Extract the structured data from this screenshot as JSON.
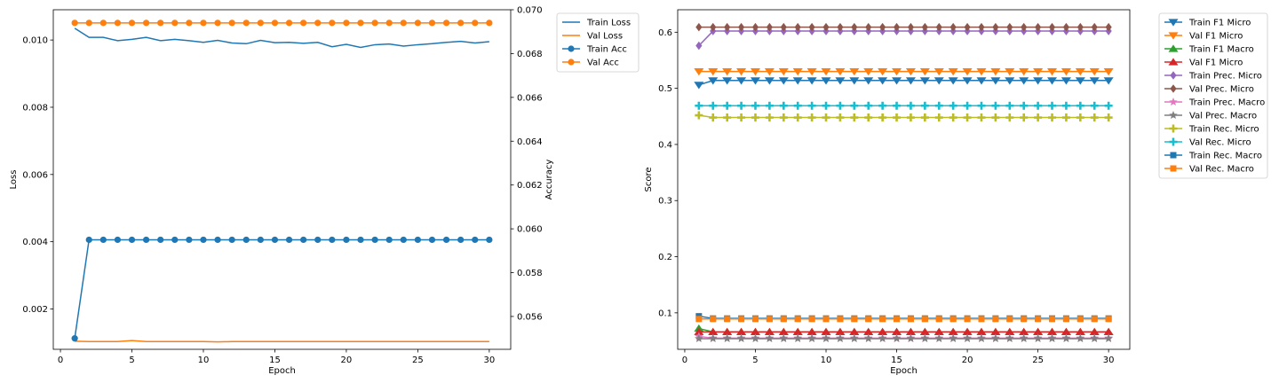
{
  "chart_data": [
    {
      "type": "line",
      "xlabel": "Epoch",
      "ylabel": "Loss",
      "y2label": "Accuracy",
      "xlim": [
        -0.5,
        31.5
      ],
      "ylim": [
        0.0008,
        0.0109
      ],
      "y2lim": [
        0.0545,
        0.07
      ],
      "xticks": [
        0,
        5,
        10,
        15,
        20,
        25,
        30
      ],
      "yticks": [
        0.002,
        0.004,
        0.006,
        0.008,
        0.01
      ],
      "ytick_labels": [
        "0.002",
        "0.004",
        "0.006",
        "0.008",
        "0.010"
      ],
      "y2ticks": [
        0.056,
        0.058,
        0.06,
        0.062,
        0.064,
        0.066,
        0.068,
        0.07
      ],
      "y2tick_labels": [
        "0.056",
        "0.058",
        "0.060",
        "0.062",
        "0.064",
        "0.066",
        "0.068",
        "0.070"
      ],
      "legend_position": "outside-right-top",
      "x": [
        1,
        2,
        3,
        4,
        5,
        6,
        7,
        8,
        9,
        10,
        11,
        12,
        13,
        14,
        15,
        16,
        17,
        18,
        19,
        20,
        21,
        22,
        23,
        24,
        25,
        26,
        27,
        28,
        29,
        30
      ],
      "series": [
        {
          "name": "Train Loss",
          "axis": "left",
          "color": "#1f77b4",
          "marker": "none",
          "values": [
            0.01035,
            0.01008,
            0.01008,
            0.00998,
            0.01002,
            0.01008,
            0.00998,
            0.01002,
            0.00998,
            0.00993,
            0.00999,
            0.00991,
            0.00989,
            0.00999,
            0.00992,
            0.00993,
            0.0099,
            0.00993,
            0.0098,
            0.00987,
            0.00978,
            0.00986,
            0.00988,
            0.00982,
            0.00986,
            0.00989,
            0.00993,
            0.00996,
            0.00991,
            0.00995
          ]
        },
        {
          "name": "Val Loss",
          "axis": "left",
          "color": "#ff7f0e",
          "marker": "none",
          "values": [
            0.00104,
            0.00103,
            0.00103,
            0.00103,
            0.00106,
            0.00103,
            0.00103,
            0.00103,
            0.00103,
            0.00103,
            0.00102,
            0.00103,
            0.00103,
            0.00103,
            0.00103,
            0.00103,
            0.00103,
            0.00103,
            0.00103,
            0.00103,
            0.00103,
            0.00103,
            0.00103,
            0.00103,
            0.00103,
            0.00103,
            0.00103,
            0.00103,
            0.00103,
            0.00103
          ]
        },
        {
          "name": "Train Acc",
          "axis": "right",
          "color": "#1f77b4",
          "marker": "circle",
          "values": [
            0.055,
            0.0595,
            0.0595,
            0.0595,
            0.0595,
            0.0595,
            0.0595,
            0.0595,
            0.0595,
            0.0595,
            0.0595,
            0.0595,
            0.0595,
            0.0595,
            0.0595,
            0.0595,
            0.0595,
            0.0595,
            0.0595,
            0.0595,
            0.0595,
            0.0595,
            0.0595,
            0.0595,
            0.0595,
            0.0595,
            0.0595,
            0.0595,
            0.0595,
            0.0595
          ]
        },
        {
          "name": "Val Acc",
          "axis": "right",
          "color": "#ff7f0e",
          "marker": "circle",
          "values": [
            0.0694,
            0.0694,
            0.0694,
            0.0694,
            0.0694,
            0.0694,
            0.0694,
            0.0694,
            0.0694,
            0.0694,
            0.0694,
            0.0694,
            0.0694,
            0.0694,
            0.0694,
            0.0694,
            0.0694,
            0.0694,
            0.0694,
            0.0694,
            0.0694,
            0.0694,
            0.0694,
            0.0694,
            0.0694,
            0.0694,
            0.0694,
            0.0694,
            0.0694,
            0.0694
          ]
        }
      ]
    },
    {
      "type": "line",
      "xlabel": "Epoch",
      "ylabel": "Score",
      "xlim": [
        -0.5,
        31.5
      ],
      "ylim": [
        0.035,
        0.64
      ],
      "xticks": [
        0,
        5,
        10,
        15,
        20,
        25,
        30
      ],
      "yticks": [
        0.1,
        0.2,
        0.3,
        0.4,
        0.5,
        0.6
      ],
      "ytick_labels": [
        "0.1",
        "0.2",
        "0.3",
        "0.4",
        "0.5",
        "0.6"
      ],
      "legend_position": "outside-right-top",
      "x": [
        1,
        2,
        3,
        4,
        5,
        6,
        7,
        8,
        9,
        10,
        11,
        12,
        13,
        14,
        15,
        16,
        17,
        18,
        19,
        20,
        21,
        22,
        23,
        24,
        25,
        26,
        27,
        28,
        29,
        30
      ],
      "series": [
        {
          "name": "Train F1 Micro",
          "color": "#1f77b4",
          "marker": "triangle-down",
          "first": 0.506,
          "rest": 0.514
        },
        {
          "name": "Val F1 Micro",
          "color": "#ff7f0e",
          "marker": "triangle-down",
          "first": 0.53,
          "rest": 0.53
        },
        {
          "name": "Train F1 Macro",
          "color": "#2ca02c",
          "marker": "triangle-up",
          "first": 0.072,
          "rest": 0.066
        },
        {
          "name": "Val F1 Micro",
          "color": "#d62728",
          "marker": "triangle-up",
          "first": 0.066,
          "rest": 0.066
        },
        {
          "name": "Train Prec. Micro",
          "color": "#9467bd",
          "marker": "diamond",
          "first": 0.576,
          "rest": 0.602
        },
        {
          "name": "Val Prec. Micro",
          "color": "#8c564b",
          "marker": "diamond",
          "first": 0.609,
          "rest": 0.609
        },
        {
          "name": "Train Prec. Macro",
          "color": "#e377c2",
          "marker": "star",
          "first": 0.058,
          "rest": 0.055
        },
        {
          "name": "Val Prec. Macro",
          "color": "#7f7f7f",
          "marker": "star",
          "first": 0.054,
          "rest": 0.054
        },
        {
          "name": "Train Rec. Micro",
          "color": "#bcbd22",
          "marker": "plus",
          "first": 0.452,
          "rest": 0.448
        },
        {
          "name": "Val Rec. Micro",
          "color": "#17becf",
          "marker": "plus",
          "first": 0.469,
          "rest": 0.469
        },
        {
          "name": "Train Rec. Macro",
          "color": "#1f77b4",
          "marker": "square",
          "first": 0.094,
          "rest": 0.09
        },
        {
          "name": "Val Rec. Macro",
          "color": "#ff7f0e",
          "marker": "square",
          "first": 0.089,
          "rest": 0.089
        }
      ]
    }
  ]
}
